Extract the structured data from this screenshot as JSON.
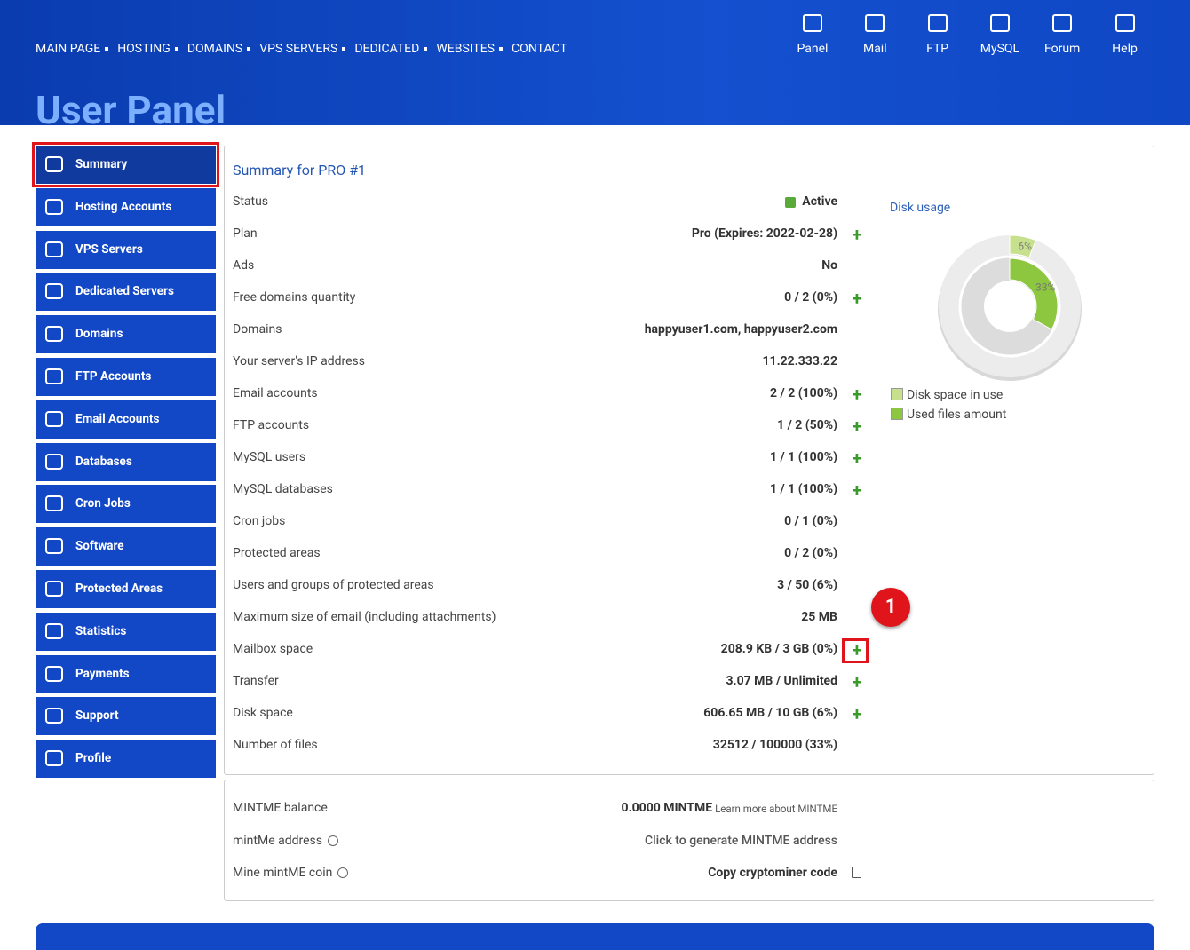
{
  "header": {
    "nav": [
      "MAIN PAGE",
      "HOSTING",
      "DOMAINS",
      "VPS SERVERS",
      "DEDICATED",
      "WEBSITES",
      "CONTACT"
    ],
    "tools": [
      "Panel",
      "Mail",
      "FTP",
      "MySQL",
      "Forum",
      "Help"
    ],
    "title": "User Panel"
  },
  "sidebar": {
    "active": 0,
    "items": [
      "Summary",
      "Hosting Accounts",
      "VPS Servers",
      "Dedicated Servers",
      "Domains",
      "FTP Accounts",
      "Email Accounts",
      "Databases",
      "Cron Jobs",
      "Software",
      "Protected Areas",
      "Statistics",
      "Payments",
      "Support",
      "Profile"
    ]
  },
  "summary": {
    "title": "Summary for PRO #1",
    "rows": [
      {
        "label": "Status",
        "value": "Active",
        "checked": true
      },
      {
        "label": "Plan",
        "value": "Pro (Expires: 2022-02-28)",
        "plus": true
      },
      {
        "label": "Ads",
        "value": "No"
      },
      {
        "label": "Free domains quantity",
        "value": "0 / 2 (0%)",
        "plus": true
      },
      {
        "label": "Domains",
        "value": "happyuser1.com, happyuser2.com"
      },
      {
        "label": "Your server's IP address",
        "value": "11.22.333.22"
      },
      {
        "label": "Email accounts",
        "value": "2 / 2 (100%)",
        "plus": true
      },
      {
        "label": "FTP accounts",
        "value": "1 / 2 (50%)",
        "plus": true
      },
      {
        "label": "MySQL users",
        "value": "1 / 1 (100%)",
        "plus": true
      },
      {
        "label": "MySQL databases",
        "value": "1 / 1 (100%)",
        "plus": true
      },
      {
        "label": "Cron jobs",
        "value": "0 / 1 (0%)"
      },
      {
        "label": "Protected areas",
        "value": "0 / 2 (0%)"
      },
      {
        "label": "Users and groups of protected areas",
        "value": "3 / 50 (6%)"
      },
      {
        "label": "Maximum size of email (including attachments)",
        "value": "25 MB"
      },
      {
        "label": "Mailbox space",
        "value": "208.9 KB / 3 GB (0%)",
        "plus": true,
        "highlight": true
      },
      {
        "label": "Transfer",
        "value": "3.07 MB / Unlimited",
        "plus": true
      },
      {
        "label": "Disk space",
        "value": "606.65 MB / 10 GB (6%)",
        "plus": true
      },
      {
        "label": "Number of files",
        "value": "32512 / 100000 (33%)"
      }
    ],
    "callout": "1"
  },
  "disk_usage": {
    "title": "Disk usage",
    "series": [
      {
        "name": "Disk space in use",
        "color": "#c6e08e",
        "value": 6,
        "value_label": "6%"
      },
      {
        "name": "Used files amount",
        "color": "#8dc63f",
        "value": 33,
        "value_label": "33%"
      }
    ]
  },
  "mintme": {
    "rows": [
      {
        "label": "MINTME balance",
        "value": "0.0000 MINTME",
        "note": "Learn more about MINTME"
      },
      {
        "label": "mintMe address",
        "value": "Click to generate MINTME address",
        "help": true
      },
      {
        "label": "Mine mintME coin",
        "value": "Copy cryptominer code",
        "help": true,
        "copy": true
      }
    ]
  }
}
